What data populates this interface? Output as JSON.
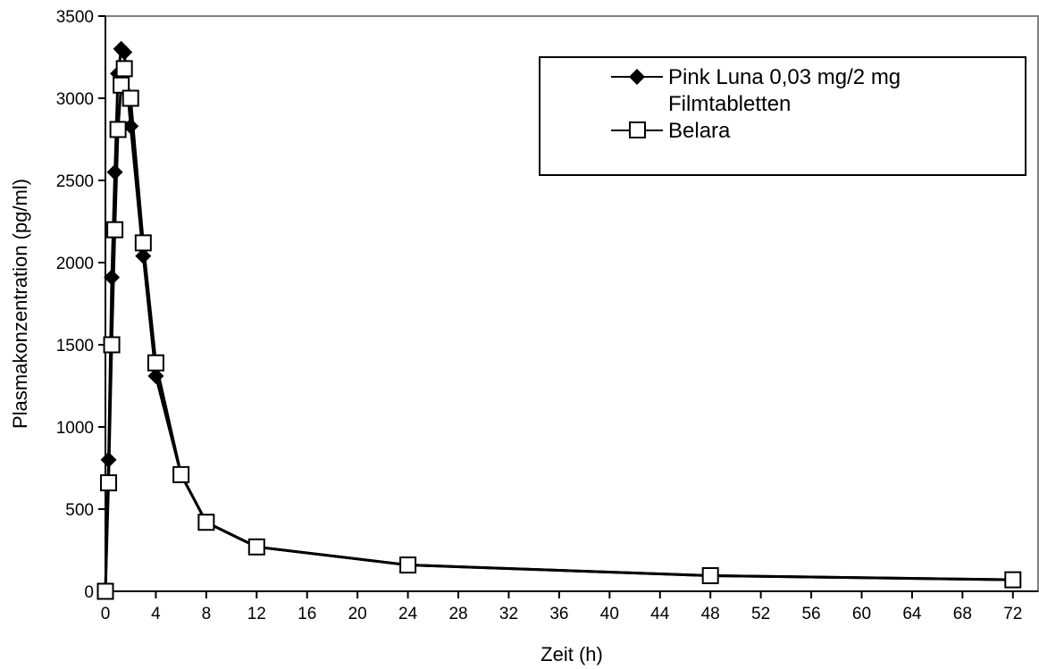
{
  "chart_data": {
    "type": "line",
    "xlabel": "Zeit (h)",
    "ylabel": "Plasmakonzentration (pg/ml)",
    "xlim": [
      0,
      74
    ],
    "ylim": [
      0,
      3500
    ],
    "x_ticks": [
      0,
      4,
      8,
      12,
      16,
      20,
      24,
      28,
      32,
      36,
      40,
      44,
      48,
      52,
      56,
      60,
      64,
      68,
      72
    ],
    "y_ticks": [
      0,
      500,
      1000,
      1500,
      2000,
      2500,
      3000,
      3500
    ],
    "grid": false,
    "legend_position": "top-right",
    "series": [
      {
        "name": "Pink Luna 0,03 mg/2 mg Filmtabletten",
        "marker": "diamond-filled",
        "color": "#000000",
        "x": [
          0,
          0.25,
          0.5,
          0.75,
          1,
          1.25,
          1.5,
          2,
          3,
          4,
          6,
          8,
          12,
          24,
          48,
          72
        ],
        "y": [
          0,
          800,
          1910,
          2550,
          3150,
          3300,
          3280,
          2830,
          2040,
          1310,
          710,
          420,
          270,
          160,
          95,
          70
        ]
      },
      {
        "name": "Belara",
        "marker": "square-open",
        "color": "#000000",
        "x": [
          0,
          0.25,
          0.5,
          0.75,
          1,
          1.25,
          1.5,
          2,
          3,
          4,
          6,
          8,
          12,
          24,
          48,
          72
        ],
        "y": [
          0,
          660,
          1500,
          2200,
          2810,
          3080,
          3180,
          3000,
          2120,
          1390,
          710,
          420,
          270,
          160,
          95,
          70
        ]
      }
    ]
  }
}
